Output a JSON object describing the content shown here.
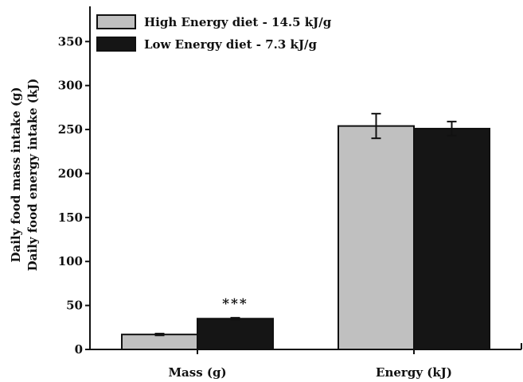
{
  "chart_data": {
    "type": "bar",
    "categories": [
      "Mass (g)",
      "Energy (kJ)"
    ],
    "series": [
      {
        "name": "High Energy diet - 14.5 kJ/g",
        "values": [
          17,
          254
        ],
        "errors": [
          1,
          14
        ],
        "color": "#c0c0c0"
      },
      {
        "name": "Low Energy diet - 7.3 kJ/g",
        "values": [
          35,
          251
        ],
        "errors": [
          1,
          8
        ],
        "color": "#151515"
      }
    ],
    "ylabel": [
      "Daily food mass intake (g)",
      "Daily food energy intake (kJ)"
    ],
    "ylim": [
      0,
      390
    ],
    "yticks": [
      "0",
      "50",
      "100",
      "150",
      "200",
      "250",
      "300",
      "350"
    ],
    "annotations": [
      {
        "text": "***",
        "category": 0,
        "series": 1
      }
    ],
    "legend_position": "top-left",
    "grid": false
  }
}
